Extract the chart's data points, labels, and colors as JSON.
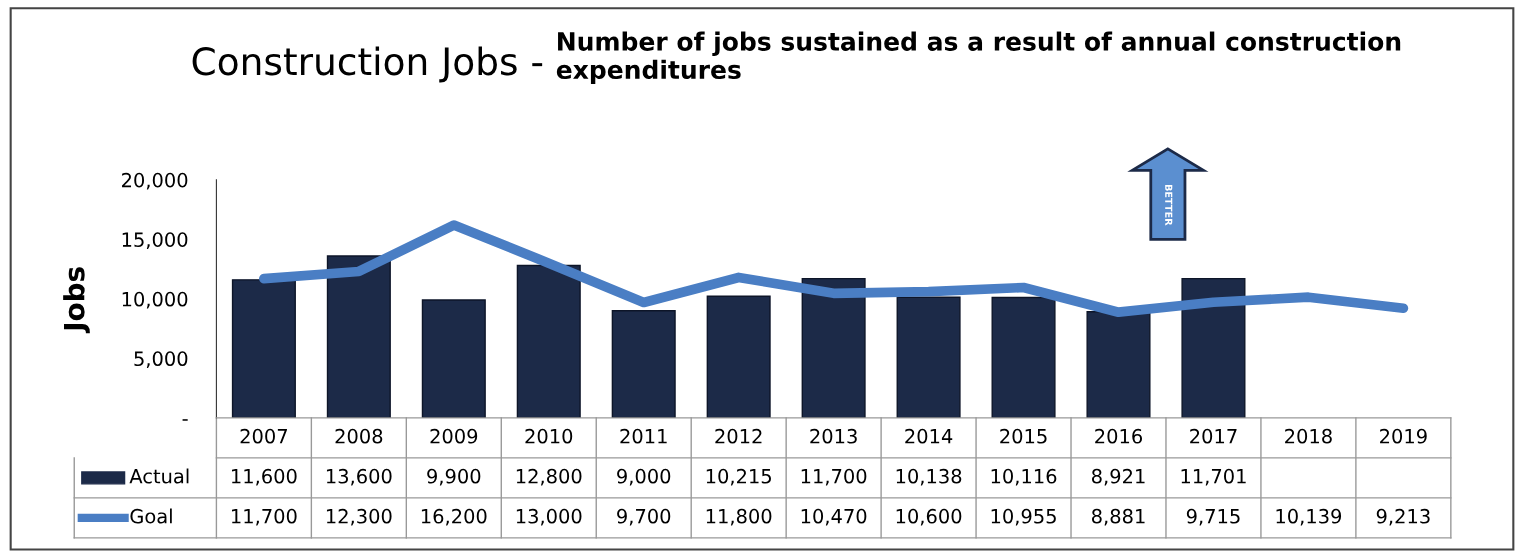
{
  "chart_data": {
    "type": "bar",
    "title": "Construction Jobs -",
    "subtitle": "Number of jobs sustained as a result of annual construction expenditures",
    "ylabel": "Jobs",
    "categories": [
      "2007",
      "2008",
      "2009",
      "2010",
      "2011",
      "2012",
      "2013",
      "2014",
      "2015",
      "2016",
      "2017",
      "2018",
      "2019"
    ],
    "series": [
      {
        "name": "Actual",
        "color": "#1c2a48",
        "values": [
          11600,
          13600,
          9900,
          12800,
          9000,
          10215,
          11700,
          10138,
          10116,
          8921,
          11701,
          null,
          null
        ],
        "value_labels": [
          "11,600",
          "13,600",
          "9,900",
          "12,800",
          "9,000",
          "10,215",
          "11,700",
          "10,138",
          "10,116",
          "8,921",
          "11,701",
          null,
          null
        ]
      },
      {
        "name": "Goal",
        "type": "line",
        "color": "#4a7ec4",
        "values": [
          11700,
          12300,
          16200,
          13000,
          9700,
          11800,
          10470,
          10600,
          10955,
          8881,
          9715,
          10139,
          9213
        ],
        "value_labels": [
          "11,700",
          "12,300",
          "16,200",
          "13,000",
          "9,700",
          "11,800",
          "10,470",
          "10,600",
          "10,955",
          "8,881",
          "9,715",
          "10,139",
          "9,213"
        ]
      }
    ],
    "ylim": [
      0,
      20000
    ],
    "yticks": [
      {
        "value": 0,
        "label": "-"
      },
      {
        "value": 5000,
        "label": "5,000"
      },
      {
        "value": 10000,
        "label": "10,000"
      },
      {
        "value": 15000,
        "label": "15,000"
      },
      {
        "value": 20000,
        "label": "20,000"
      }
    ],
    "legend": "bottom left",
    "grid": false,
    "marker": "none",
    "line_style": "solid",
    "annotations": [
      "BETTER"
    ]
  }
}
